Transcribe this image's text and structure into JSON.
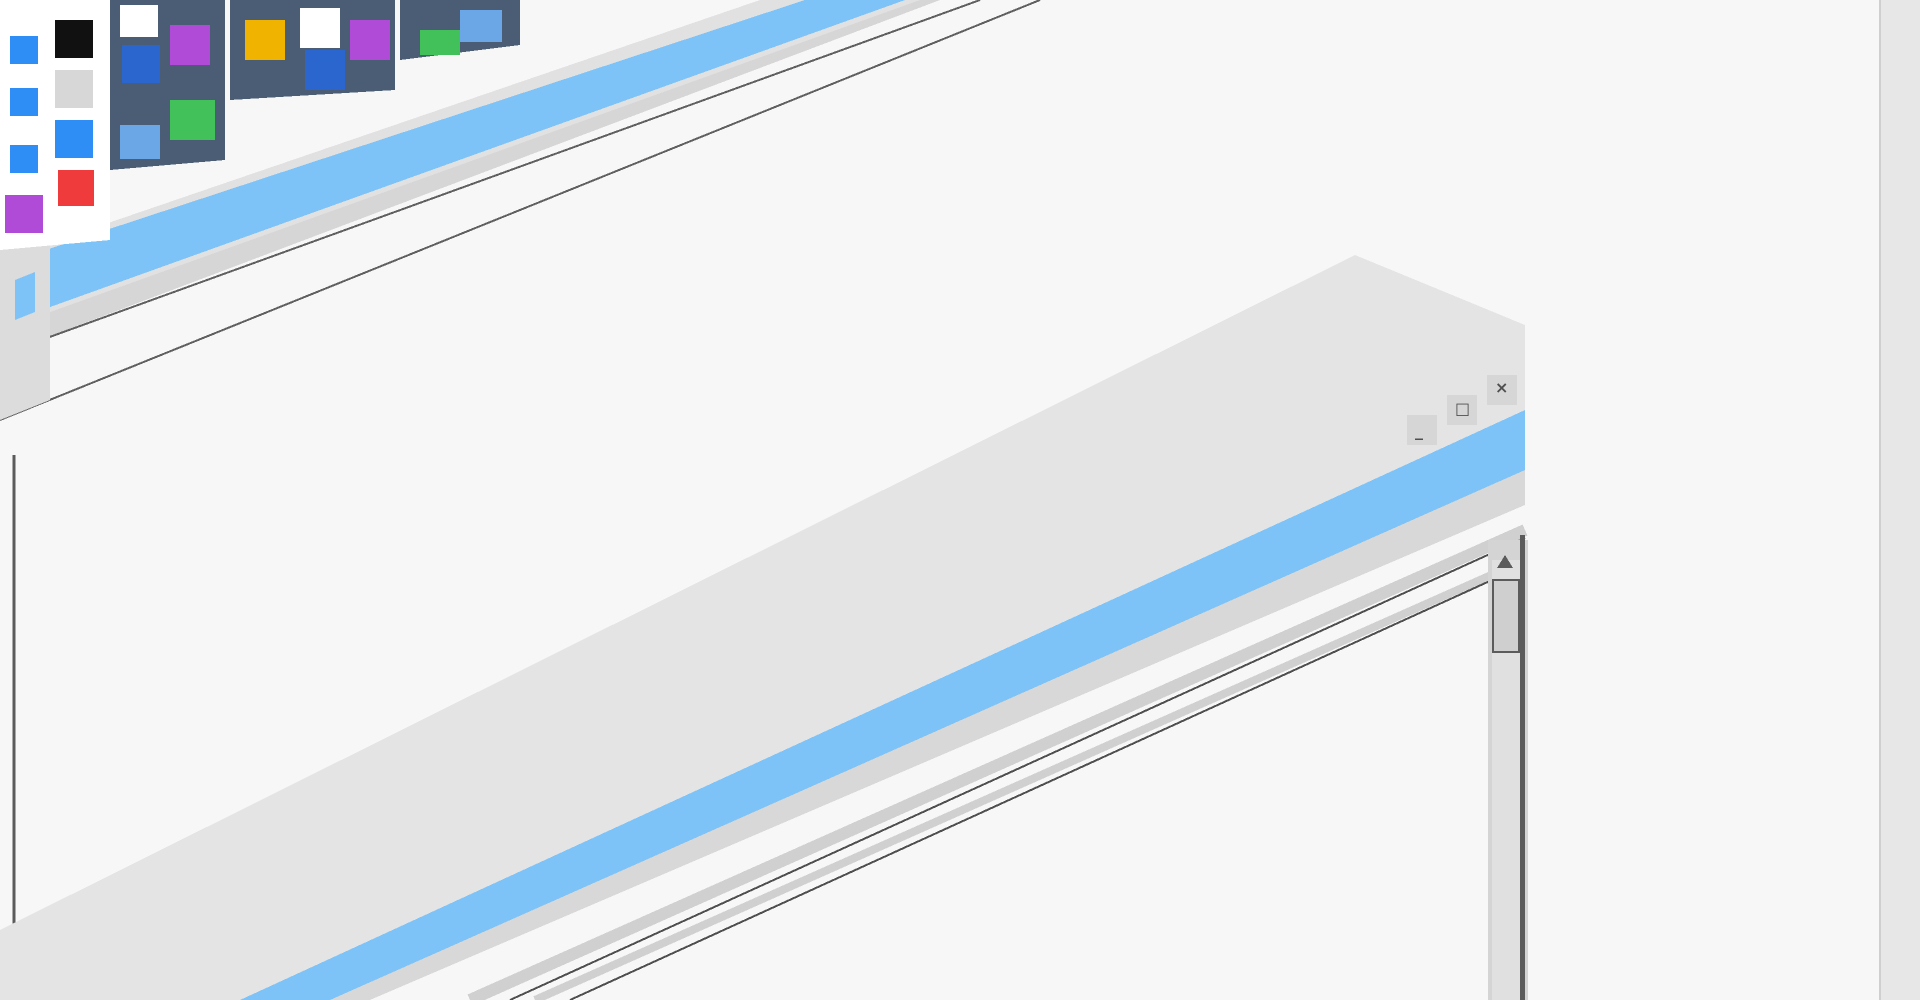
{
  "theme": {
    "background": "#f7f7f7",
    "panel_gray": "#e4e4e4",
    "frame_gray": "#d9d9d9",
    "accent_blue": "#7dc3f7",
    "outline": "#5b5b5b"
  },
  "window_controls": {
    "minimize_icon": "minimize-icon",
    "maximize_icon": "maximize-icon",
    "close_icon": "close-icon"
  },
  "desktop_icons": [
    "weather-icon",
    "soccer-ball-icon",
    "safari-icon",
    "calendar-icon",
    "telegram-icon",
    "app-store-icon",
    "instagram-icon",
    "phone-icon",
    "music-icon",
    "facebook-icon",
    "camera-icon",
    "messages-icon",
    "game-controller-icon",
    "mail-icon"
  ],
  "scrollbar": {
    "up_icon": "arrow-up-icon"
  }
}
